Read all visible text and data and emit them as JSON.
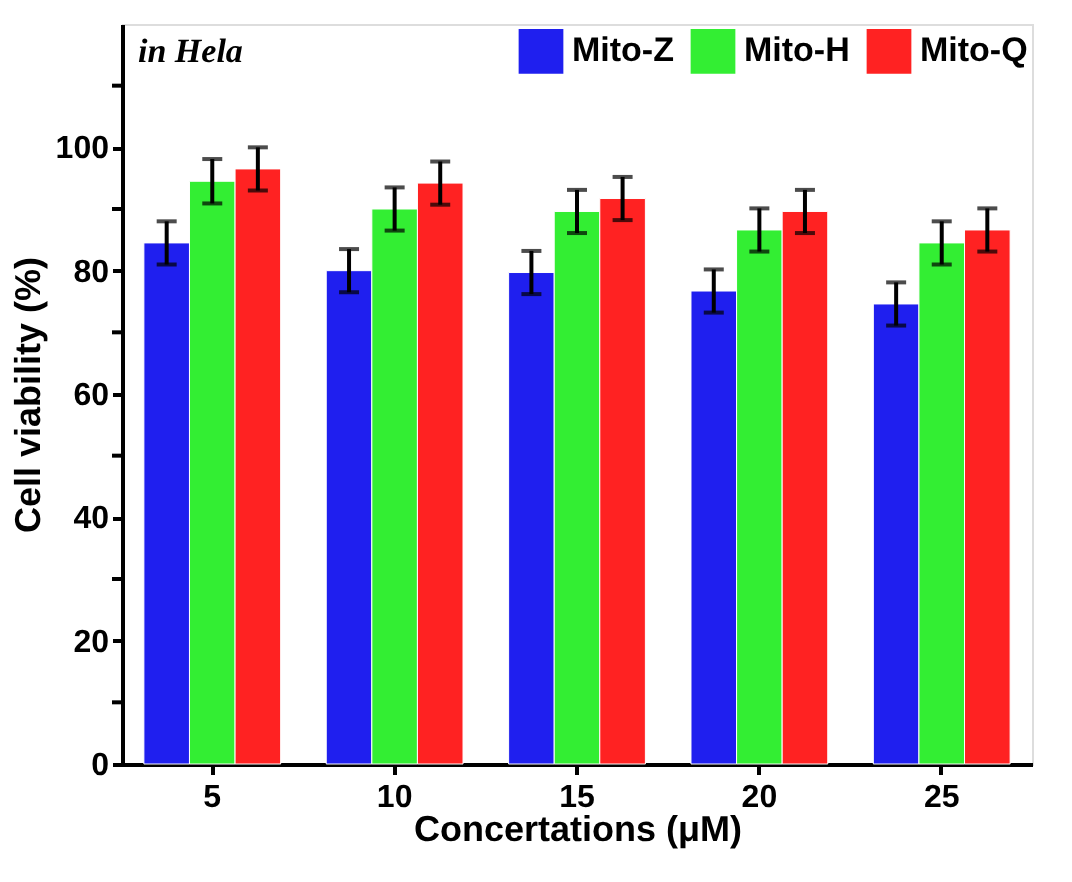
{
  "chart_data": {
    "type": "bar",
    "xlabel": "Concertations (μM)",
    "ylabel": "Cell viability (%)",
    "categories": [
      "5",
      "10",
      "15",
      "20",
      "25"
    ],
    "series": [
      {
        "name": "Mito-Z",
        "color": "#1f1fef",
        "values": [
          84.5,
          80,
          79.7,
          76.7,
          74.6
        ],
        "errors": [
          3.5,
          3.5,
          3.5,
          3.5,
          3.5
        ]
      },
      {
        "name": "Mito-H",
        "color": "#33ee33",
        "values": [
          94.5,
          90,
          89.6,
          86.6,
          84.5
        ],
        "errors": [
          3.6,
          3.5,
          3.5,
          3.5,
          3.5
        ]
      },
      {
        "name": "Mito-Q",
        "color": "#ff2222",
        "values": [
          96.5,
          94.2,
          91.7,
          89.6,
          86.6
        ],
        "errors": [
          3.5,
          3.5,
          3.5,
          3.5,
          3.5
        ]
      }
    ],
    "ylim": [
      0,
      120
    ],
    "yticks": [
      0,
      {
        "value": 10,
        "label": null
      },
      20,
      {
        "value": 30,
        "label": null
      },
      40,
      {
        "value": 50,
        "label": null
      },
      60,
      {
        "value": 70,
        "label": null
      },
      80,
      {
        "value": 90,
        "label": null
      },
      100,
      {
        "value": 110,
        "label": null
      }
    ],
    "annotations": [
      "in Hela"
    ],
    "legend": "top right",
    "grid": false
  }
}
